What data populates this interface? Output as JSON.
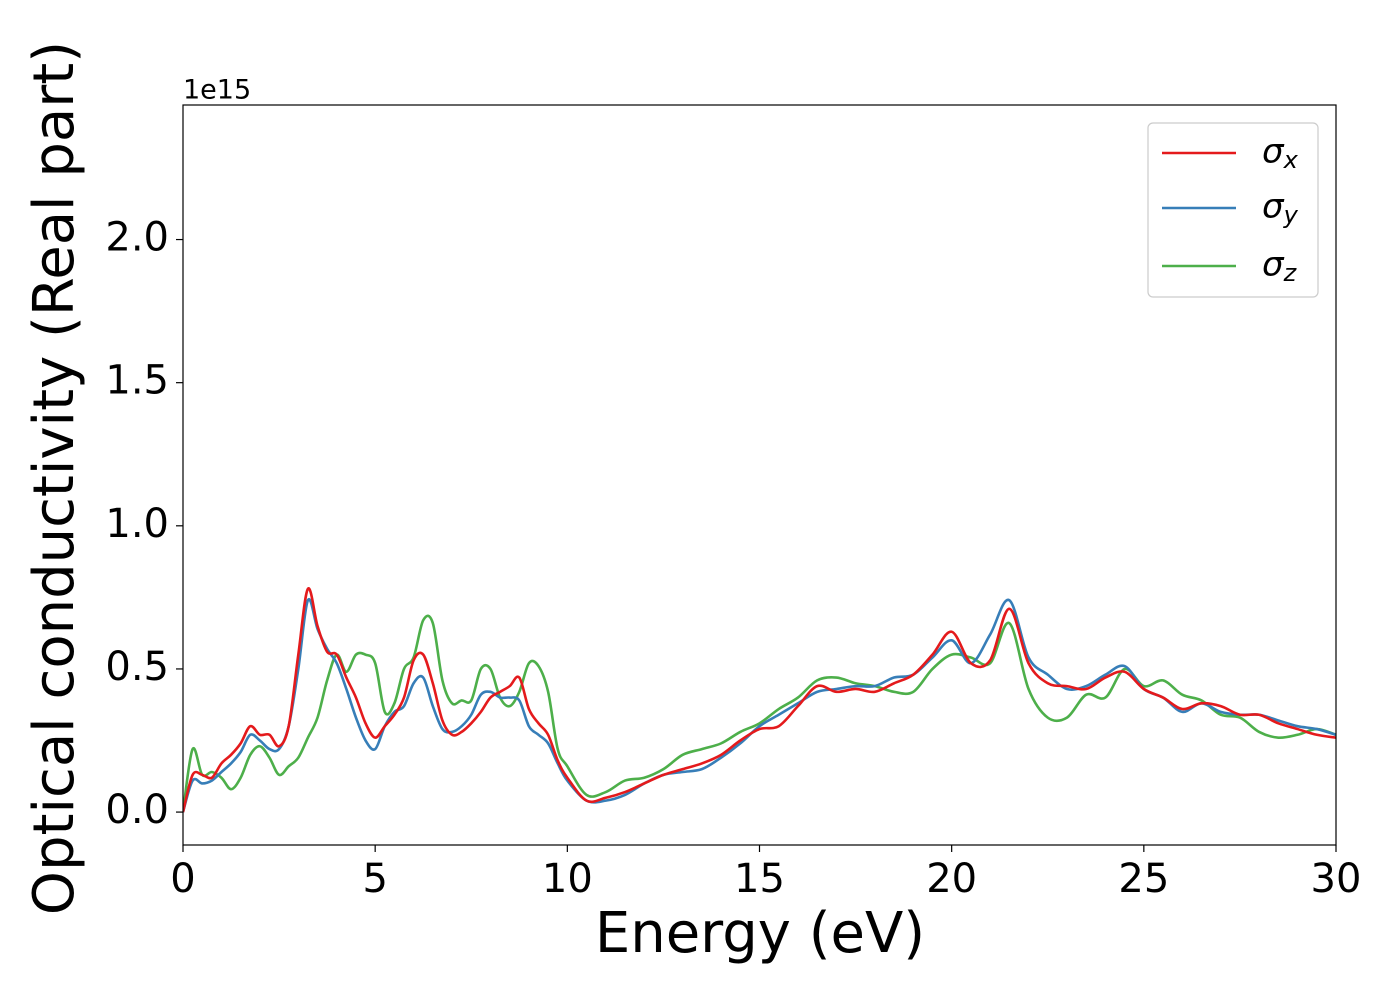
{
  "chart_data": {
    "type": "line",
    "x_label": "Energy (eV)",
    "y_label": "Optical conductivity (Real part)",
    "y_offset_label": "1e15",
    "x": [
      0,
      0.25,
      0.5,
      0.75,
      1,
      1.25,
      1.5,
      1.75,
      2,
      2.25,
      2.5,
      2.75,
      3,
      3.25,
      3.5,
      3.75,
      4,
      4.25,
      4.5,
      4.75,
      5,
      5.25,
      5.5,
      5.75,
      6,
      6.25,
      6.5,
      6.75,
      7,
      7.25,
      7.5,
      7.75,
      8,
      8.25,
      8.5,
      8.75,
      9,
      9.25,
      9.5,
      9.75,
      10,
      10.5,
      11,
      11.5,
      12,
      12.5,
      13,
      13.5,
      14,
      14.5,
      15,
      15.5,
      16,
      16.5,
      17,
      17.5,
      18,
      18.5,
      19,
      19.5,
      20,
      20.5,
      21,
      21.5,
      22,
      22.5,
      23,
      23.5,
      24,
      24.5,
      25,
      25.5,
      26,
      26.5,
      27,
      27.5,
      28,
      28.5,
      29,
      29.5,
      30
    ],
    "series": [
      {
        "name": "σx",
        "color": "#e41a1c",
        "values": [
          0,
          0.13,
          0.13,
          0.12,
          0.17,
          0.2,
          0.24,
          0.3,
          0.27,
          0.27,
          0.23,
          0.3,
          0.55,
          0.78,
          0.65,
          0.56,
          0.55,
          0.47,
          0.4,
          0.31,
          0.26,
          0.3,
          0.34,
          0.4,
          0.53,
          0.55,
          0.45,
          0.32,
          0.27,
          0.28,
          0.31,
          0.35,
          0.4,
          0.42,
          0.44,
          0.47,
          0.36,
          0.31,
          0.27,
          0.18,
          0.12,
          0.04,
          0.05,
          0.07,
          0.1,
          0.13,
          0.15,
          0.17,
          0.2,
          0.25,
          0.29,
          0.3,
          0.37,
          0.44,
          0.42,
          0.43,
          0.42,
          0.45,
          0.48,
          0.55,
          0.63,
          0.52,
          0.53,
          0.71,
          0.52,
          0.45,
          0.44,
          0.43,
          0.47,
          0.49,
          0.43,
          0.4,
          0.36,
          0.38,
          0.37,
          0.34,
          0.34,
          0.31,
          0.29,
          0.27,
          0.26
        ]
      },
      {
        "name": "σy",
        "color": "#377eb8",
        "values": [
          0,
          0.11,
          0.1,
          0.11,
          0.14,
          0.17,
          0.21,
          0.27,
          0.25,
          0.22,
          0.22,
          0.3,
          0.5,
          0.74,
          0.64,
          0.57,
          0.52,
          0.43,
          0.33,
          0.25,
          0.22,
          0.3,
          0.35,
          0.37,
          0.45,
          0.47,
          0.37,
          0.29,
          0.28,
          0.3,
          0.34,
          0.41,
          0.42,
          0.4,
          0.4,
          0.39,
          0.3,
          0.27,
          0.24,
          0.17,
          0.11,
          0.04,
          0.04,
          0.06,
          0.1,
          0.13,
          0.14,
          0.15,
          0.19,
          0.24,
          0.3,
          0.34,
          0.38,
          0.42,
          0.43,
          0.44,
          0.44,
          0.47,
          0.48,
          0.54,
          0.6,
          0.52,
          0.62,
          0.74,
          0.54,
          0.48,
          0.43,
          0.44,
          0.48,
          0.51,
          0.43,
          0.4,
          0.35,
          0.38,
          0.35,
          0.34,
          0.34,
          0.32,
          0.3,
          0.29,
          0.27
        ]
      },
      {
        "name": "σz",
        "color": "#4daf4a",
        "values": [
          0,
          0.22,
          0.13,
          0.14,
          0.12,
          0.08,
          0.12,
          0.2,
          0.23,
          0.19,
          0.13,
          0.16,
          0.19,
          0.26,
          0.33,
          0.46,
          0.55,
          0.49,
          0.55,
          0.55,
          0.52,
          0.35,
          0.38,
          0.5,
          0.54,
          0.67,
          0.66,
          0.46,
          0.38,
          0.39,
          0.39,
          0.5,
          0.5,
          0.4,
          0.37,
          0.42,
          0.52,
          0.51,
          0.42,
          0.22,
          0.16,
          0.06,
          0.07,
          0.11,
          0.12,
          0.15,
          0.2,
          0.22,
          0.24,
          0.28,
          0.31,
          0.36,
          0.4,
          0.46,
          0.47,
          0.45,
          0.44,
          0.42,
          0.42,
          0.5,
          0.55,
          0.54,
          0.52,
          0.66,
          0.43,
          0.33,
          0.33,
          0.41,
          0.4,
          0.5,
          0.44,
          0.46,
          0.41,
          0.39,
          0.34,
          0.33,
          0.28,
          0.26,
          0.27,
          0.29,
          0.27
        ]
      }
    ],
    "xlim": [
      0,
      30
    ],
    "xticks": [
      0,
      5,
      10,
      15,
      20,
      25,
      30
    ],
    "ylim": [
      -0.115,
      2.47
    ],
    "yticks": [
      {
        "value": 0,
        "label": "0.0"
      },
      0.5,
      {
        "value": 1,
        "label": "1.0"
      },
      1.5,
      {
        "value": 2,
        "label": "2.0"
      }
    ],
    "legend": "upper right",
    "grid": false
  }
}
